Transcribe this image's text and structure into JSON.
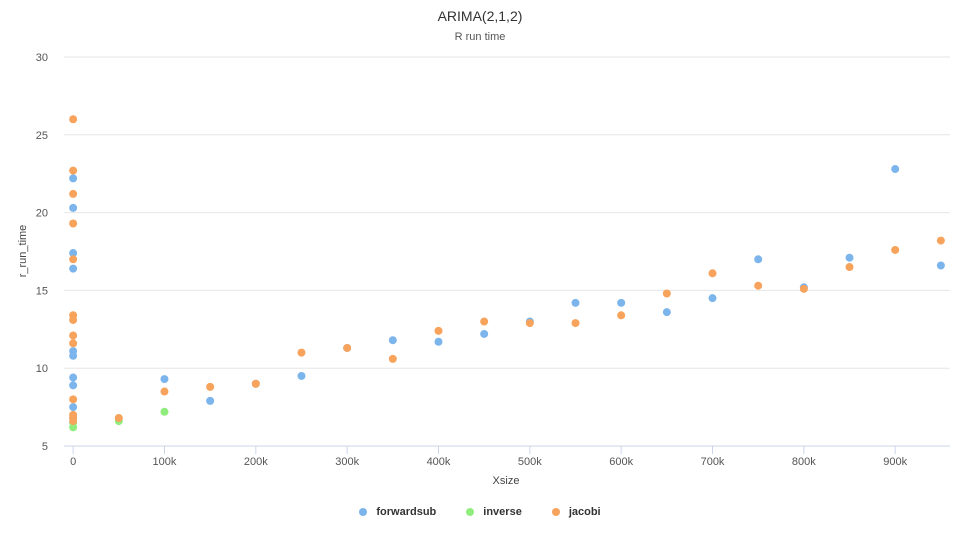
{
  "chart_data": {
    "type": "scatter",
    "title": "ARIMA(2,1,2)",
    "subtitle": "R run time",
    "xlabel": "Xsize",
    "ylabel": "r_run_time",
    "xlim": [
      -10000,
      960000
    ],
    "ylim": [
      5,
      30
    ],
    "x_ticks": [
      0,
      100000,
      200000,
      300000,
      400000,
      500000,
      600000,
      700000,
      800000,
      900000
    ],
    "x_tick_labels": [
      "0",
      "100k",
      "200k",
      "300k",
      "400k",
      "500k",
      "600k",
      "700k",
      "800k",
      "900k"
    ],
    "y_ticks": [
      5,
      10,
      15,
      20,
      25,
      30
    ],
    "grid": "horizontal",
    "legend_position": "bottom-center",
    "series": [
      {
        "name": "forwardsub",
        "color": "#7cb5ec",
        "points": [
          [
            0,
            22.2
          ],
          [
            0,
            20.3
          ],
          [
            0,
            17.4
          ],
          [
            0,
            16.4
          ],
          [
            0,
            11.1
          ],
          [
            0,
            10.8
          ],
          [
            0,
            9.4
          ],
          [
            0,
            8.9
          ],
          [
            0,
            7.5
          ],
          [
            0,
            6.8
          ],
          [
            100000,
            9.3
          ],
          [
            150000,
            7.9
          ],
          [
            200000,
            9.0
          ],
          [
            250000,
            9.5
          ],
          [
            300000,
            11.3
          ],
          [
            350000,
            11.8
          ],
          [
            400000,
            11.7
          ],
          [
            450000,
            12.2
          ],
          [
            500000,
            13.0
          ],
          [
            550000,
            14.2
          ],
          [
            600000,
            14.2
          ],
          [
            650000,
            13.6
          ],
          [
            700000,
            14.5
          ],
          [
            750000,
            17.0
          ],
          [
            800000,
            15.2
          ],
          [
            850000,
            17.1
          ],
          [
            900000,
            22.8
          ],
          [
            950000,
            16.6
          ]
        ]
      },
      {
        "name": "inverse",
        "color": "#90ed7d",
        "points": [
          [
            0,
            6.2
          ],
          [
            0,
            6.5
          ],
          [
            50000,
            6.6
          ],
          [
            100000,
            7.2
          ]
        ]
      },
      {
        "name": "jacobi",
        "color": "#f7a35c",
        "points": [
          [
            0,
            26.0
          ],
          [
            0,
            22.7
          ],
          [
            0,
            21.2
          ],
          [
            0,
            19.3
          ],
          [
            0,
            17.0
          ],
          [
            0,
            13.4
          ],
          [
            0,
            13.1
          ],
          [
            0,
            12.1
          ],
          [
            0,
            11.6
          ],
          [
            0,
            8.0
          ],
          [
            0,
            7.0
          ],
          [
            0,
            6.8
          ],
          [
            0,
            6.6
          ],
          [
            50000,
            6.8
          ],
          [
            100000,
            8.5
          ],
          [
            150000,
            8.8
          ],
          [
            200000,
            9.0
          ],
          [
            250000,
            11.0
          ],
          [
            300000,
            11.3
          ],
          [
            350000,
            10.6
          ],
          [
            400000,
            12.4
          ],
          [
            450000,
            13.0
          ],
          [
            500000,
            12.9
          ],
          [
            550000,
            12.9
          ],
          [
            600000,
            13.4
          ],
          [
            650000,
            14.8
          ],
          [
            700000,
            16.1
          ],
          [
            750000,
            15.3
          ],
          [
            800000,
            15.1
          ],
          [
            850000,
            16.5
          ],
          [
            900000,
            17.6
          ],
          [
            950000,
            18.2
          ]
        ]
      }
    ]
  }
}
